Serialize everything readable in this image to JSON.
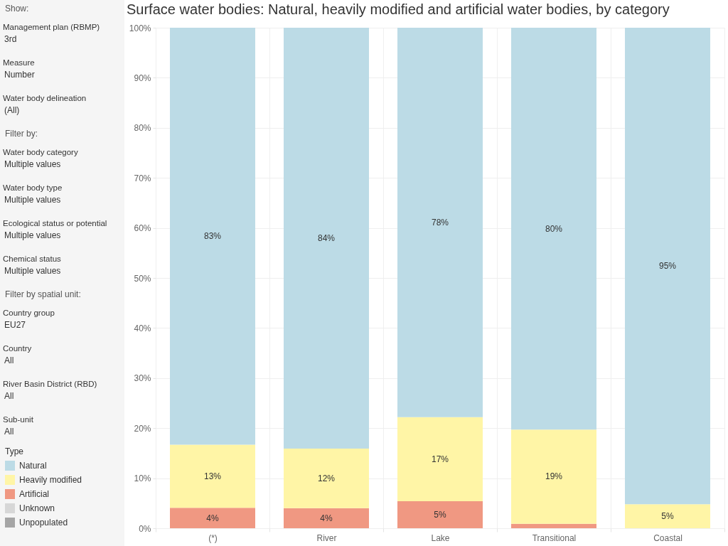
{
  "chart_data": {
    "type": "bar",
    "title": "Surface water bodies: Natural, heavily modified and artificial water bodies, by category",
    "categories": [
      "(*)",
      "River",
      "Lake",
      "Transitional",
      "Coastal"
    ],
    "stacked": true,
    "series": [
      {
        "name": "Unpopulated",
        "color": "#a5a5a5",
        "values": [
          null,
          null,
          null,
          null,
          null
        ]
      },
      {
        "name": "Unknown",
        "color": "#d7d7d7",
        "values": [
          null,
          null,
          null,
          null,
          null
        ]
      },
      {
        "name": "Artificial",
        "color": "#f09882",
        "values": [
          4.1,
          4.0,
          5.4,
          0.9,
          null
        ],
        "value_labels": [
          "4%",
          "4%",
          "5%",
          null,
          null
        ]
      },
      {
        "name": "Heavily modified",
        "color": "#fff5a6",
        "values": [
          12.6,
          11.9,
          16.8,
          18.8,
          4.8
        ],
        "value_labels": [
          "13%",
          "12%",
          "17%",
          "19%",
          "5%"
        ]
      },
      {
        "name": "Natural",
        "color": "#bcdbe6",
        "values": [
          83.3,
          84.1,
          77.8,
          80.3,
          95.2
        ],
        "value_labels": [
          "83%",
          "84%",
          "78%",
          "80%",
          "95%"
        ]
      }
    ],
    "ylim": [
      0,
      100
    ],
    "yticks": [
      {
        "value": 0,
        "label": "0%"
      },
      {
        "value": 10,
        "label": "10%"
      },
      {
        "value": 20,
        "label": "20%"
      },
      {
        "value": 30,
        "label": "30%"
      },
      {
        "value": 40,
        "label": "40%"
      },
      {
        "value": 50,
        "label": "50%"
      },
      {
        "value": 60,
        "label": "60%"
      },
      {
        "value": 70,
        "label": "70%"
      },
      {
        "value": 80,
        "label": "80%"
      },
      {
        "value": 90,
        "label": "90%"
      },
      {
        "value": 100,
        "label": "100%"
      }
    ],
    "grid": true,
    "legend": "left",
    "legend_title": "Type",
    "annotations": [
      "Show:",
      "Management plan (RBMP)",
      "3rd",
      "Measure",
      "Number",
      "Water body delineation",
      "(All)",
      "Filter by:",
      "Water body category",
      "Multiple values",
      "Water body type",
      "Multiple values",
      "Ecological status or potential",
      "Multiple values",
      "Chemical status",
      "Multiple values",
      "Filter by spatial unit:",
      "Country group",
      "EU27",
      "Country",
      "All",
      "River Basin District (RBD)",
      "All",
      "Sub-unit",
      "All"
    ]
  }
}
